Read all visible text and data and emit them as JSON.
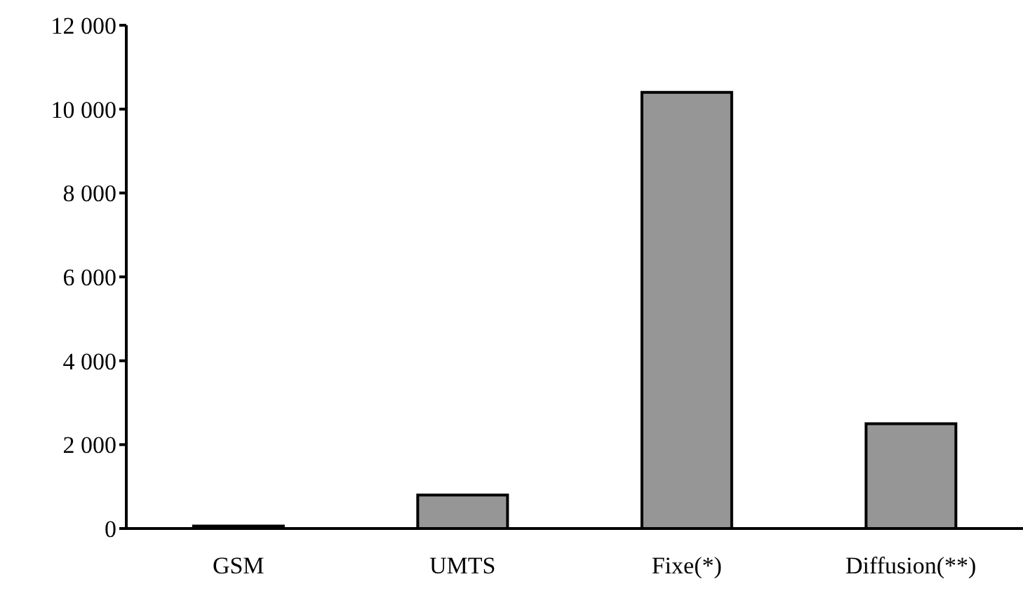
{
  "chart_data": {
    "type": "bar",
    "categories": [
      "GSM",
      "UMTS",
      "Fixe(*)",
      "Diffusion(**)"
    ],
    "values": [
      60,
      800,
      10400,
      2500
    ],
    "color": "#969696",
    "ylim": [
      0,
      12000
    ],
    "yticks": [
      0,
      {
        "value": 2000,
        "label": "2 000"
      },
      {
        "value": 4000,
        "label": "4 000"
      },
      {
        "value": 6000,
        "label": "6 000"
      },
      {
        "value": 8000,
        "label": "8 000"
      },
      {
        "value": 10000,
        "label": "10 000"
      },
      {
        "value": 12000,
        "label": "12 000"
      }
    ],
    "grid": false,
    "legend": false
  }
}
